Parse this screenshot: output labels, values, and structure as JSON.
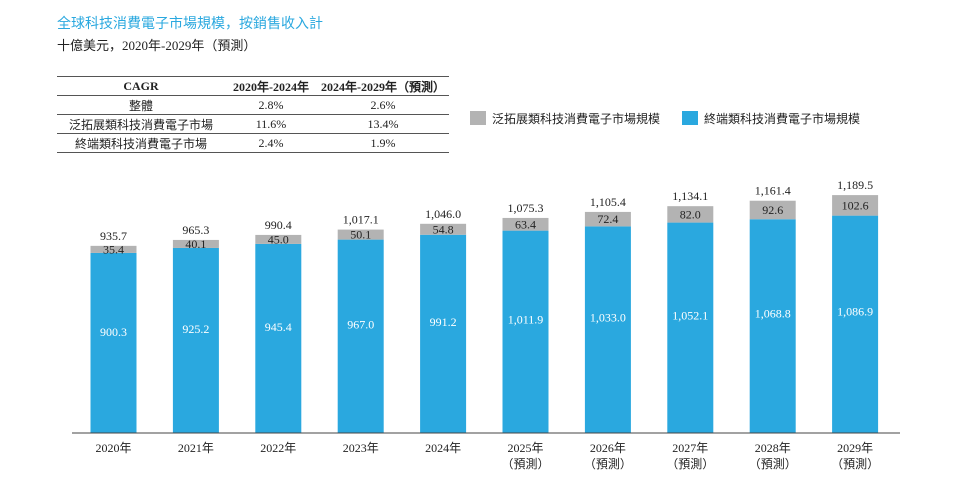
{
  "header": {
    "title": "全球科技消費電子市場規模，按銷售收入計",
    "subtitle": "十億美元，2020年-2029年（預測）"
  },
  "cagr_table": {
    "headers": [
      "CAGR",
      "2020年-2024年",
      "2024年-2029年（預測）"
    ],
    "rows": [
      [
        "整體",
        "2.8%",
        "2.6%"
      ],
      [
        "泛拓展類科技消費電子市場",
        "11.6%",
        "13.4%"
      ],
      [
        "終端類科技消費電子市場",
        "2.4%",
        "1.9%"
      ]
    ]
  },
  "legend": {
    "items": [
      {
        "label": "泛拓展類科技消費電子市場規模",
        "color": "#b3b3b3"
      },
      {
        "label": "終端類科技消費電子市場規模",
        "color": "#2aa8df"
      }
    ]
  },
  "chart_data": {
    "type": "bar",
    "stacked": true,
    "categories": [
      "2020年",
      "2021年",
      "2022年",
      "2023年",
      "2024年",
      "2025年",
      "2026年",
      "2027年",
      "2028年",
      "2029年"
    ],
    "category_notes": [
      "",
      "",
      "",
      "",
      "",
      "（預測）",
      "（預測）",
      "（預測）",
      "（預測）",
      "（預測）"
    ],
    "series": [
      {
        "name": "終端類科技消費電子市場規模",
        "color": "#2aa8df",
        "values": [
          900.3,
          925.2,
          945.4,
          967.0,
          991.2,
          1011.9,
          1033.0,
          1052.1,
          1068.8,
          1086.9
        ],
        "labels": [
          "900.3",
          "925.2",
          "945.4",
          "967.0",
          "991.2",
          "1,011.9",
          "1,033.0",
          "1,052.1",
          "1,068.8",
          "1,086.9"
        ]
      },
      {
        "name": "泛拓展類科技消費電子市場規模",
        "color": "#b3b3b3",
        "values": [
          35.4,
          40.1,
          45.0,
          50.1,
          54.8,
          63.4,
          72.4,
          82.0,
          92.6,
          102.6
        ],
        "labels": [
          "35.4",
          "40.1",
          "45.0",
          "50.1",
          "54.8",
          "63.4",
          "72.4",
          "82.0",
          "92.6",
          "102.6"
        ]
      }
    ],
    "totals": [
      935.7,
      965.3,
      990.4,
      1017.1,
      1046.0,
      1075.3,
      1105.4,
      1134.1,
      1161.4,
      1189.5
    ],
    "total_labels": [
      "935.7",
      "965.3",
      "990.4",
      "1,017.1",
      "1,046.0",
      "1,075.3",
      "1,105.4",
      "1,134.1",
      "1,161.4",
      "1,189.5"
    ],
    "unit": "十億美元"
  }
}
